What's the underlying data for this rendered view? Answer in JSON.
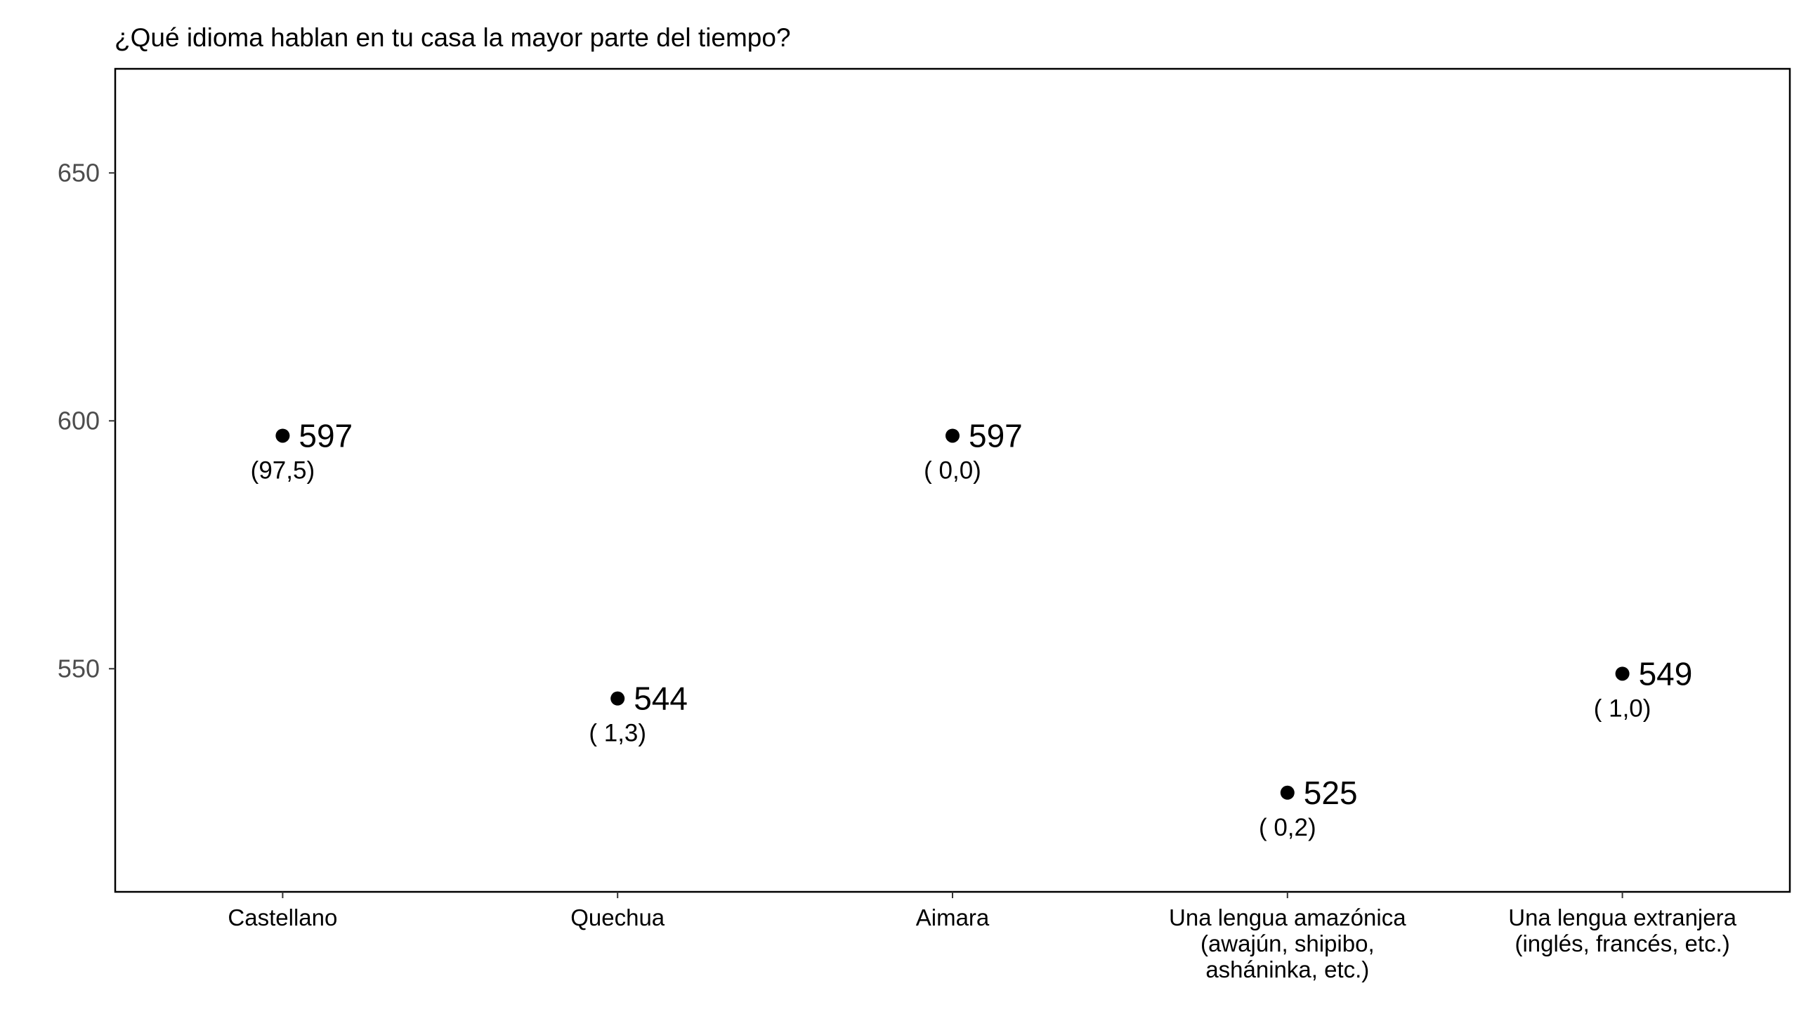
{
  "chart_data": {
    "type": "scatter",
    "title": "¿Qué idioma hablan en tu casa la mayor parte del tiempo?",
    "xlabel": "",
    "ylabel": "",
    "ylim": [
      505,
      671
    ],
    "yticks": [
      550,
      600,
      650
    ],
    "grid": false,
    "categories": [
      [
        "Castellano"
      ],
      [
        "Quechua"
      ],
      [
        "Aimara"
      ],
      [
        "Una lengua amazónica",
        "(awajún, shipibo,",
        "asháninka, etc.)"
      ],
      [
        "Una lengua extranjera",
        "(inglés, francés, etc.)"
      ]
    ],
    "values": [
      597,
      544,
      597,
      525,
      549
    ],
    "value_labels": [
      "597",
      "544",
      "597",
      "525",
      "549"
    ],
    "percent_labels": [
      "(97,5)",
      "( 1,3)",
      "( 0,0)",
      "( 0,2)",
      "( 1,0)"
    ],
    "colors": {
      "point": "#000000",
      "frame": "#000000",
      "tick_text": "#4d4d4d"
    }
  }
}
